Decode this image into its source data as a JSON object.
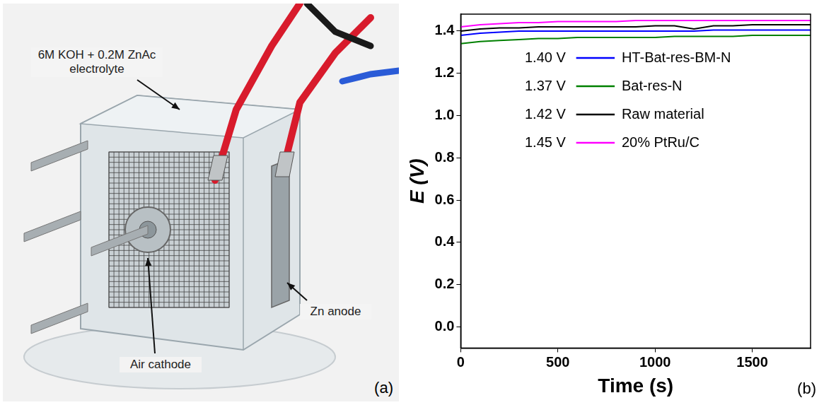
{
  "panel_a": {
    "panel_label": "(a)",
    "labels": [
      "6M KOH + 0.2M ZnAc electrolyte",
      "Air cathode",
      "Zn anode"
    ]
  },
  "chart_data": {
    "type": "line",
    "panel_label": "(b)",
    "x_label": "Time (s)",
    "y_label": "E (V)",
    "x": [
      0,
      100,
      200,
      300,
      400,
      500,
      600,
      700,
      800,
      900,
      1000,
      1100,
      1200,
      1300,
      1400,
      1500,
      1600,
      1700,
      1800
    ],
    "series": [
      {
        "name": "HT-Bat-res-BM-N",
        "voltage_label": "1.40 V",
        "color": "#0000ff",
        "values": [
          1.38,
          1.39,
          1.395,
          1.4,
          1.4,
          1.4,
          1.4,
          1.4,
          1.4,
          1.4,
          1.4,
          1.4,
          1.4,
          1.405,
          1.405,
          1.405,
          1.405,
          1.405,
          1.405
        ]
      },
      {
        "name": "Bat-res-N",
        "voltage_label": "1.37 V",
        "color": "#008000",
        "values": [
          1.34,
          1.35,
          1.355,
          1.36,
          1.365,
          1.365,
          1.37,
          1.37,
          1.37,
          1.37,
          1.37,
          1.375,
          1.375,
          1.375,
          1.375,
          1.38,
          1.38,
          1.38,
          1.38
        ]
      },
      {
        "name": "Raw material",
        "voltage_label": "1.42 V",
        "color": "#000000",
        "values": [
          1.4,
          1.41,
          1.415,
          1.415,
          1.42,
          1.42,
          1.42,
          1.42,
          1.42,
          1.42,
          1.425,
          1.425,
          1.41,
          1.425,
          1.425,
          1.43,
          1.43,
          1.43,
          1.43
        ]
      },
      {
        "name": "20% PtRu/C",
        "voltage_label": "1.45 V",
        "color": "#ff00ff",
        "values": [
          1.42,
          1.43,
          1.435,
          1.44,
          1.44,
          1.445,
          1.445,
          1.445,
          1.445,
          1.45,
          1.45,
          1.45,
          1.45,
          1.45,
          1.45,
          1.45,
          1.45,
          1.45,
          1.45
        ]
      }
    ],
    "xlim": [
      0,
      1800
    ],
    "xticks": [
      0,
      500,
      1000,
      1500
    ],
    "ylim": [
      -0.1,
      1.48
    ],
    "yticks": [
      {
        "value": 0,
        "label": "0.0"
      },
      {
        "value": 0.2,
        "label": "0.2"
      },
      {
        "value": 0.4,
        "label": "0.4"
      },
      {
        "value": 0.6,
        "label": "0.6"
      },
      {
        "value": 0.8,
        "label": "0.8"
      },
      {
        "value": 1,
        "label": "1.0"
      },
      {
        "value": 1.2,
        "label": "1.2"
      },
      {
        "value": 1.4,
        "label": "1.4"
      }
    ],
    "grid": false,
    "legend": "top"
  }
}
